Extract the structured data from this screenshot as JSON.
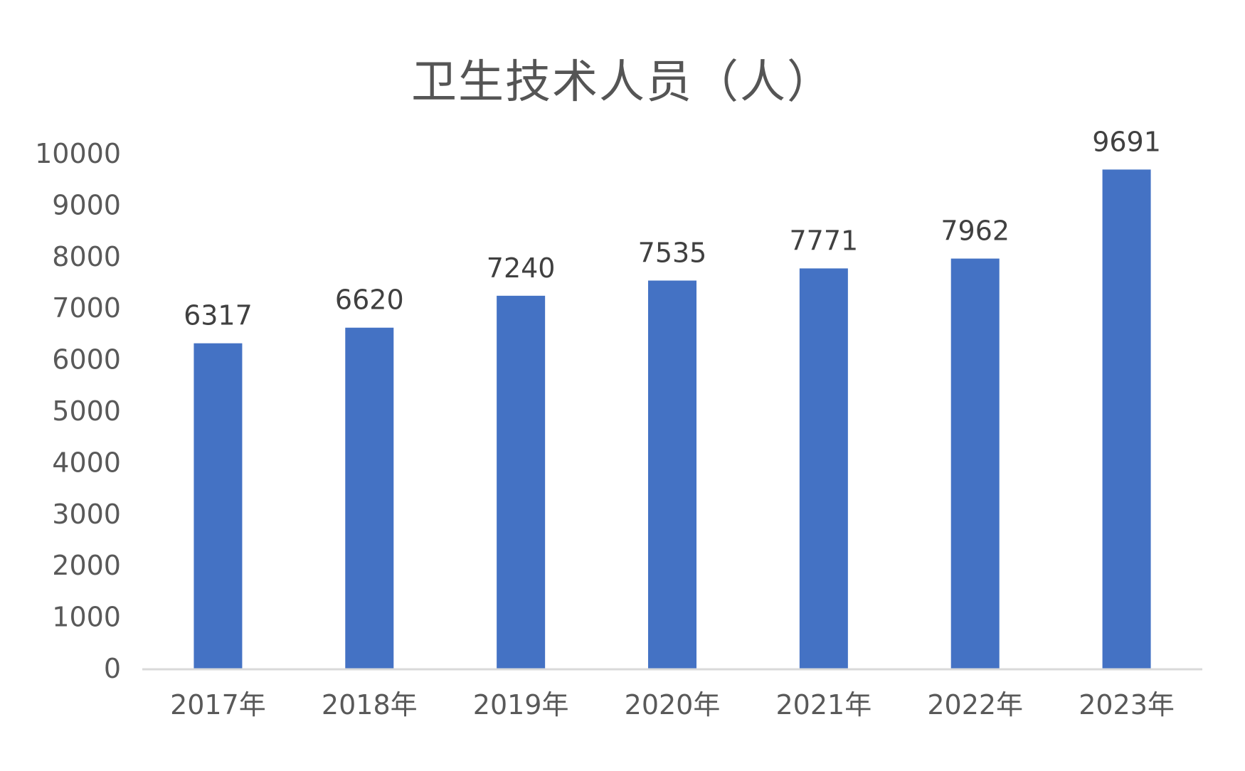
{
  "chart_data": {
    "type": "bar",
    "title": "卫生技术人员（人）",
    "categories": [
      "2017年",
      "2018年",
      "2019年",
      "2020年",
      "2021年",
      "2022年",
      "2023年"
    ],
    "values": [
      6317,
      6620,
      7240,
      7535,
      7771,
      7962,
      9691
    ],
    "yticks": [
      "0",
      "1000",
      "2000",
      "3000",
      "4000",
      "5000",
      "6000",
      "7000",
      "8000",
      "9000",
      "10000"
    ],
    "ylim": [
      0,
      10000
    ],
    "grid": false,
    "legend": "none",
    "bar_color": "#4472C4",
    "axis_color": "#D9D9D9"
  }
}
